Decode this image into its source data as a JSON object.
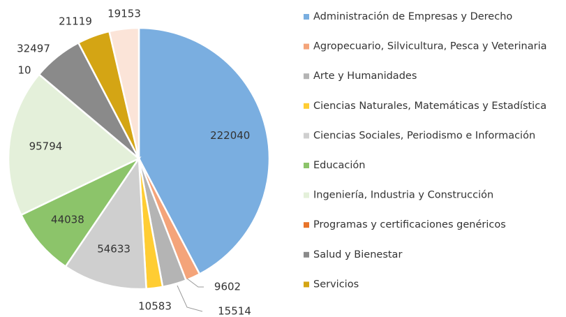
{
  "chart_data": {
    "type": "pie",
    "categories": [
      "Administración de Empresas y Derecho",
      "Agropecuario, Silvicultura, Pesca y Veterinaria",
      "Arte y Humanidades",
      "Ciencias Naturales, Matemáticas y Estadística",
      "Ciencias Sociales, Periodismo e Información",
      "Educación",
      "Ingeniería, Industria y Construcción",
      "Programas y certificaciones genéricos",
      "Salud y Bienestar",
      "Servicios",
      null
    ],
    "values": [
      222040,
      9602,
      15514,
      10583,
      54633,
      44038,
      95794,
      10,
      32497,
      21119,
      19153
    ],
    "colors": [
      "#7aaee0",
      "#f4a47a",
      "#b4b4b4",
      "#ffcd33",
      "#cfcfcf",
      "#8cc46a",
      "#e4f0da",
      "#e8742a",
      "#8a8a8a",
      "#d4a514",
      "#fbe4d8"
    ]
  }
}
